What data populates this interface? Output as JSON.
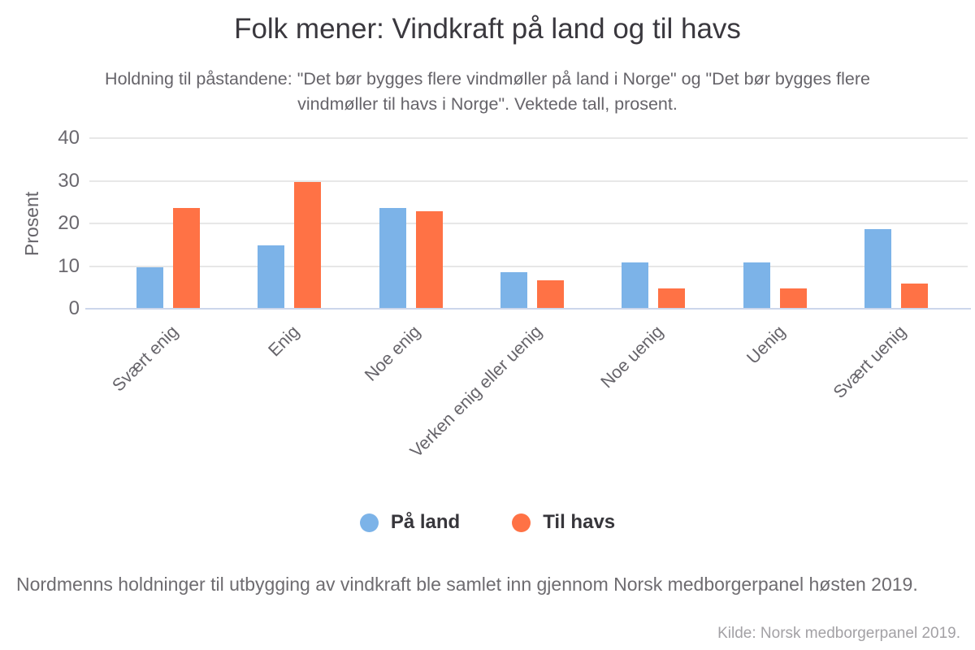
{
  "chart_data": {
    "type": "bar",
    "title": "Folk mener: Vindkraft på land og til havs",
    "subtitle": "Holdning til påstandene: \"Det bør bygges flere vindmøller på land i Norge\" og \"Det bør bygges flere vindmøller til havs i Norge\". Vektede tall, prosent.",
    "categories": [
      "Svært enig",
      "Enig",
      "Noe enig",
      "Verken enig eller uenig",
      "Noe uenig",
      "Uenig",
      "Svært uenig"
    ],
    "series": [
      {
        "name": "På land",
        "color": "#7cb3e8",
        "values": [
          9.7,
          14.8,
          23.6,
          8.6,
          10.9,
          10.9,
          18.7
        ]
      },
      {
        "name": "Til havs",
        "color": "#ff7245",
        "values": [
          23.6,
          29.8,
          22.9,
          6.6,
          4.8,
          4.8,
          5.9
        ]
      }
    ],
    "xlabel": "",
    "ylabel": "Prosent",
    "yticks": [
      0,
      10,
      20,
      30,
      40
    ],
    "ylim": [
      0,
      40
    ],
    "grid": true,
    "legend_position": "bottom",
    "axis_line_color": "#ccd6eb",
    "gridline_color": "#e7e7e7"
  },
  "footer": {
    "note": "Nordmenns holdninger til utbygging av vindkraft ble samlet inn gjennom Norsk medborgerpanel høsten 2019.",
    "source": "Kilde: Norsk medborgerpanel 2019."
  }
}
